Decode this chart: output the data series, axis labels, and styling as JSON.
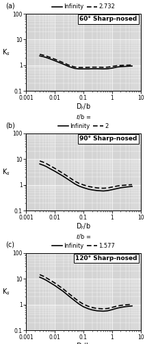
{
  "panels": [
    {
      "label": "(a)",
      "title": "60° Sharp-nosed",
      "legend_ratio": "2.732",
      "infinity_x": [
        0.003,
        0.004,
        0.005,
        0.007,
        0.01,
        0.015,
        0.02,
        0.03,
        0.05,
        0.07,
        0.1,
        0.15,
        0.2,
        0.3,
        0.5,
        0.7,
        1.0,
        1.5,
        2.0,
        3.0,
        5.0
      ],
      "infinity_y": [
        2.3,
        2.15,
        2.0,
        1.75,
        1.5,
        1.25,
        1.1,
        0.9,
        0.75,
        0.72,
        0.72,
        0.72,
        0.73,
        0.73,
        0.72,
        0.73,
        0.77,
        0.85,
        0.88,
        0.9,
        0.93
      ],
      "ratio_x": [
        0.003,
        0.004,
        0.005,
        0.007,
        0.01,
        0.015,
        0.02,
        0.03,
        0.05,
        0.07,
        0.1,
        0.15,
        0.2,
        0.3,
        0.5,
        0.7,
        1.0,
        1.5,
        2.0,
        3.0,
        5.0
      ],
      "ratio_y": [
        2.65,
        2.45,
        2.28,
        2.0,
        1.72,
        1.42,
        1.25,
        1.02,
        0.85,
        0.82,
        0.82,
        0.83,
        0.84,
        0.84,
        0.83,
        0.84,
        0.89,
        0.96,
        0.98,
        1.0,
        1.02
      ]
    },
    {
      "label": "(b)",
      "title": "90° Sharp-nosed",
      "legend_ratio": "2",
      "infinity_x": [
        0.003,
        0.004,
        0.005,
        0.007,
        0.01,
        0.015,
        0.02,
        0.03,
        0.05,
        0.07,
        0.1,
        0.15,
        0.2,
        0.3,
        0.5,
        0.7,
        1.0,
        1.5,
        2.0,
        3.0,
        5.0
      ],
      "infinity_y": [
        6.5,
        5.8,
        5.2,
        4.2,
        3.4,
        2.6,
        2.15,
        1.6,
        1.1,
        0.9,
        0.78,
        0.68,
        0.64,
        0.6,
        0.58,
        0.6,
        0.65,
        0.72,
        0.77,
        0.82,
        0.87
      ],
      "ratio_x": [
        0.003,
        0.004,
        0.005,
        0.007,
        0.01,
        0.015,
        0.02,
        0.03,
        0.05,
        0.07,
        0.1,
        0.15,
        0.2,
        0.3,
        0.5,
        0.7,
        1.0,
        1.5,
        2.0,
        3.0,
        5.0
      ],
      "ratio_y": [
        8.5,
        7.6,
        6.8,
        5.5,
        4.4,
        3.35,
        2.75,
        2.05,
        1.4,
        1.15,
        1.0,
        0.87,
        0.82,
        0.76,
        0.74,
        0.76,
        0.82,
        0.9,
        0.94,
        0.98,
        1.02
      ]
    },
    {
      "label": "(c)",
      "title": "120° Sharp-nosed",
      "legend_ratio": "1.577",
      "infinity_x": [
        0.003,
        0.004,
        0.005,
        0.007,
        0.01,
        0.015,
        0.02,
        0.03,
        0.05,
        0.07,
        0.1,
        0.15,
        0.2,
        0.3,
        0.5,
        0.7,
        1.0,
        1.5,
        2.0,
        3.0,
        5.0
      ],
      "infinity_y": [
        11.5,
        10.0,
        8.8,
        7.0,
        5.5,
        4.0,
        3.2,
        2.2,
        1.4,
        1.05,
        0.82,
        0.68,
        0.62,
        0.57,
        0.55,
        0.57,
        0.63,
        0.72,
        0.77,
        0.83,
        0.88
      ],
      "ratio_x": [
        0.003,
        0.004,
        0.005,
        0.007,
        0.01,
        0.015,
        0.02,
        0.03,
        0.05,
        0.07,
        0.1,
        0.15,
        0.2,
        0.3,
        0.5,
        0.7,
        1.0,
        1.5,
        2.0,
        3.0,
        5.0
      ],
      "ratio_y": [
        14.5,
        12.6,
        11.0,
        8.8,
        6.9,
        5.0,
        4.0,
        2.75,
        1.75,
        1.32,
        1.03,
        0.85,
        0.77,
        0.7,
        0.68,
        0.7,
        0.77,
        0.87,
        0.92,
        0.97,
        1.02
      ]
    }
  ],
  "xlim": [
    0.001,
    10
  ],
  "ylim": [
    0.1,
    100
  ],
  "line_color": "#000000",
  "bg_color": "#d4d4d4",
  "grid_color": "#ffffff",
  "xlabel": "D$_r$/b",
  "ylabel": "K$_s$",
  "solid_lw": 1.2,
  "dashed_lw": 1.2
}
